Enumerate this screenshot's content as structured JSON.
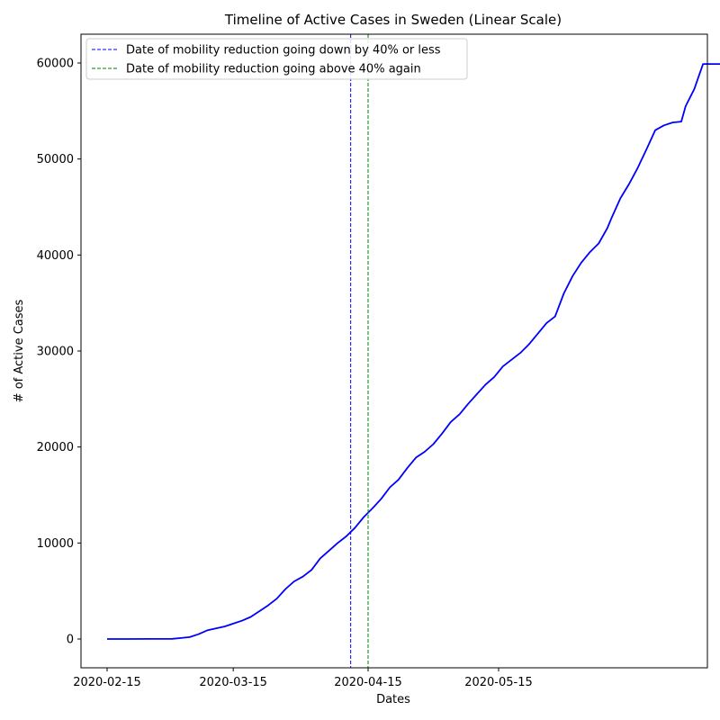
{
  "chart_data": {
    "type": "line",
    "title": "Timeline of Active Cases in Sweden (Linear Scale)",
    "xlabel": "Dates",
    "ylabel": "# of Active Cases",
    "xlim": [
      "2020-02-09",
      "2020-07-02"
    ],
    "ylim": [
      -3000,
      63000
    ],
    "x_ticks": [
      "2020-02-15",
      "2020-03-15",
      "2020-04-15",
      "2020-05-15"
    ],
    "y_ticks": [
      0,
      10000,
      20000,
      30000,
      40000,
      50000,
      60000
    ],
    "grid": false,
    "legend_position": "top-left",
    "series": [
      {
        "color": "#0000ff",
        "style": "solid",
        "x": [
          "2020-02-15",
          "2020-02-20",
          "2020-02-25",
          "2020-02-29",
          "2020-03-01",
          "2020-03-03",
          "2020-03-05",
          "2020-03-07",
          "2020-03-09",
          "2020-03-11",
          "2020-03-13",
          "2020-03-15",
          "2020-03-17",
          "2020-03-19",
          "2020-03-21",
          "2020-03-23",
          "2020-03-25",
          "2020-03-27",
          "2020-03-29",
          "2020-03-31",
          "2020-04-02",
          "2020-04-04",
          "2020-04-06",
          "2020-04-08",
          "2020-04-10",
          "2020-04-12",
          "2020-04-14",
          "2020-04-16",
          "2020-04-18",
          "2020-04-20",
          "2020-04-22",
          "2020-04-24",
          "2020-04-26",
          "2020-04-28",
          "2020-04-30",
          "2020-05-02",
          "2020-05-04",
          "2020-05-06",
          "2020-05-08",
          "2020-05-10",
          "2020-05-12",
          "2020-05-14",
          "2020-05-16",
          "2020-05-18",
          "2020-05-20",
          "2020-05-22",
          "2020-05-24",
          "2020-05-26",
          "2020-05-28",
          "2020-05-30",
          "2020-06-01",
          "2020-06-03",
          "2020-06-05",
          "2020-06-07",
          "2020-06-09",
          "2020-06-10",
          "2020-06-12",
          "2020-06-14",
          "2020-06-16",
          "2020-06-18",
          "2020-06-20",
          "2020-06-22",
          "2020-06-24",
          "2020-06-26",
          "2020-06-27",
          "2020-06-29",
          "2020-06-30",
          "2020-07-01",
          "2020-07-03",
          "2020-07-05",
          "2020-07-07",
          "2020-07-08",
          "2020-07-09"
        ],
        "y": [
          0,
          0,
          5,
          10,
          20,
          100,
          200,
          500,
          900,
          1100,
          1300,
          1600,
          1900,
          2300,
          2900,
          3500,
          4200,
          5200,
          6000,
          6500,
          7200,
          8400,
          9200,
          10000,
          10700,
          11600,
          12700,
          13600,
          14600,
          15800,
          16600,
          17800,
          18900,
          19500,
          20300,
          21400,
          22600,
          23400,
          24500,
          25500,
          26500,
          27300,
          28400,
          29100,
          29800,
          30700,
          31800,
          32900,
          33600,
          36000,
          37800,
          39200,
          40300,
          41200,
          42800,
          43900,
          45900,
          47400,
          49100,
          51000,
          53000,
          53500,
          53800,
          53900,
          55500,
          57300,
          58600,
          59900,
          59900,
          59900,
          59900,
          59900,
          59900
        ]
      }
    ],
    "vlines": [
      {
        "x": "2020-04-11",
        "color": "#0000ff",
        "label": "Date of mobility reduction going down by 40% or less"
      },
      {
        "x": "2020-04-15",
        "color": "#008000",
        "label": "Date of mobility reduction going above 40% again"
      }
    ]
  }
}
